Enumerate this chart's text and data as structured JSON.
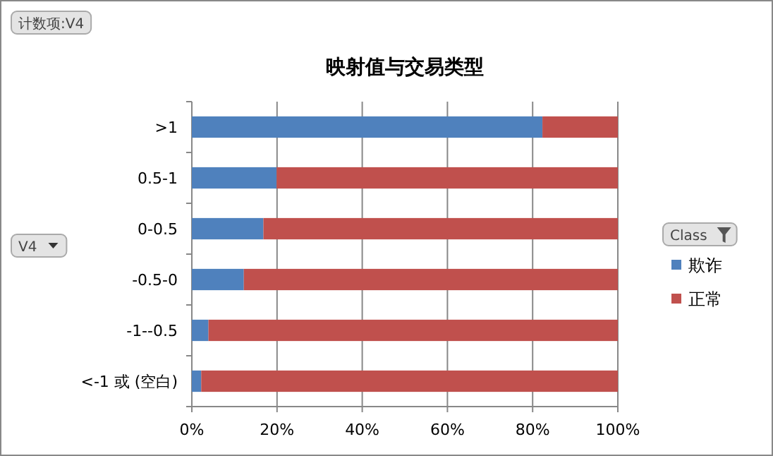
{
  "chart_data": {
    "type": "bar",
    "orientation": "horizontal",
    "stacked": true,
    "title": "映射值与交易类型",
    "categories": [
      ">1",
      "0.5-1",
      "0-0.5",
      "-0.5-0",
      "-1--0.5",
      "<-1 或 (空白)"
    ],
    "series": [
      {
        "name": "欺诈",
        "color": "#4f81bd",
        "values": [
          82.3,
          19.9,
          16.8,
          12.2,
          3.9,
          2.2
        ]
      },
      {
        "name": "正常",
        "color": "#c0504d",
        "values": [
          17.7,
          80.1,
          83.2,
          87.8,
          96.1,
          97.8
        ]
      }
    ],
    "xlim": [
      0,
      100
    ],
    "xticks": [
      {
        "value": 0,
        "label": "0%"
      },
      {
        "value": 20,
        "label": "20%"
      },
      {
        "value": 40,
        "label": "40%"
      },
      {
        "value": 60,
        "label": "60%"
      },
      {
        "value": 80,
        "label": "80%"
      },
      {
        "value": 100,
        "label": "100%"
      }
    ],
    "grid": "x",
    "legend": "right",
    "legend_title": "Class",
    "ylabel": "V4",
    "annotations": [
      "计数项:V4"
    ]
  }
}
